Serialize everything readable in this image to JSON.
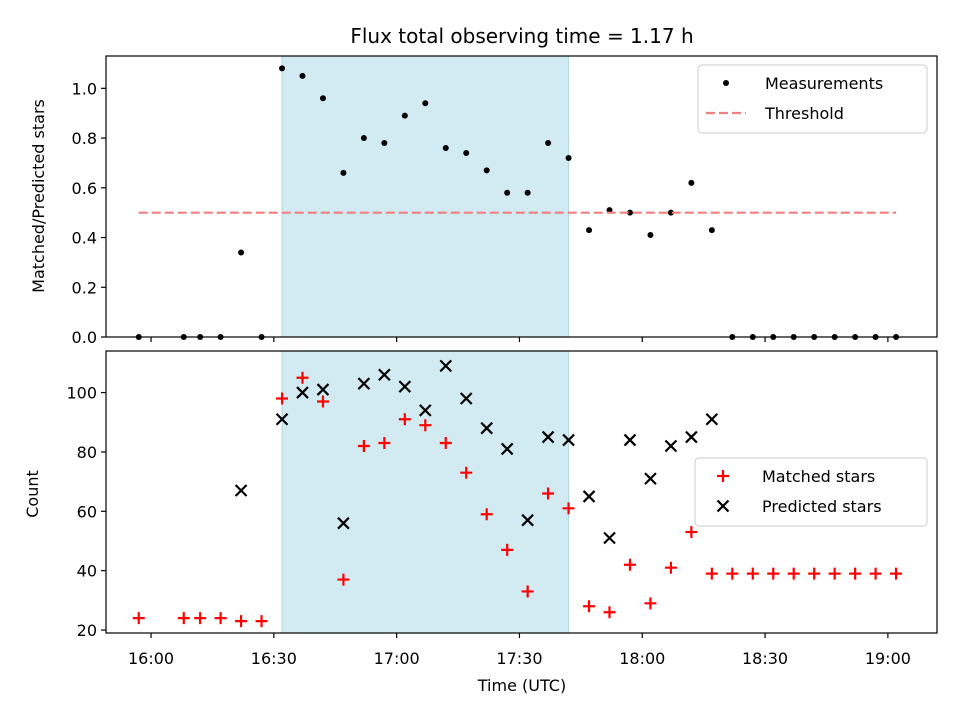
{
  "title": "Flux total observing time = 1.17 h",
  "xlabel": "Time (UTC)",
  "colors": {
    "measurements": "#000000",
    "threshold": "#f08080",
    "matched": "#ff0000",
    "predicted": "#000000",
    "highlight": "#add8e6"
  },
  "chart_data": [
    {
      "type": "scatter",
      "ylabel": "Matched/Predicted stars",
      "ylim": [
        0,
        1.13
      ],
      "yticks": [
        0.0,
        0.2,
        0.4,
        0.6,
        0.8,
        1.0
      ],
      "ytick_labels": [
        "0.0",
        "0.2",
        "0.4",
        "0.6",
        "0.8",
        "1.0"
      ],
      "xlim": [
        "15:49",
        "19:12"
      ],
      "highlight_span": [
        "16:32",
        "17:42"
      ],
      "legend_position": "upper right",
      "series": [
        {
          "name": "Measurements",
          "marker": "dot",
          "x": [
            "15:57",
            "16:08",
            "16:12",
            "16:17",
            "16:22",
            "16:27",
            "16:32",
            "16:37",
            "16:42",
            "16:47",
            "16:52",
            "16:57",
            "17:02",
            "17:07",
            "17:12",
            "17:17",
            "17:22",
            "17:27",
            "17:32",
            "17:37",
            "17:42",
            "17:47",
            "17:52",
            "17:57",
            "18:02",
            "18:07",
            "18:12",
            "18:17",
            "18:22",
            "18:27",
            "18:32",
            "18:37",
            "18:42",
            "18:47",
            "18:52",
            "18:57",
            "19:02"
          ],
          "y": [
            0.0,
            0.0,
            0.0,
            0.0,
            0.34,
            0.0,
            1.08,
            1.05,
            0.96,
            0.66,
            0.8,
            0.78,
            0.89,
            0.94,
            0.76,
            0.74,
            0.67,
            0.58,
            0.58,
            0.78,
            0.72,
            0.43,
            0.51,
            0.5,
            0.41,
            0.5,
            0.62,
            0.43,
            0.0,
            0.0,
            0.0,
            0.0,
            0.0,
            0.0,
            0.0,
            0.0,
            0.0
          ]
        },
        {
          "name": "Threshold",
          "marker": "dashed-line",
          "x": [
            "15:57",
            "19:02"
          ],
          "y": [
            0.5,
            0.5
          ]
        }
      ]
    },
    {
      "type": "scatter",
      "ylabel": "Count",
      "ylim": [
        19,
        114
      ],
      "yticks": [
        20,
        40,
        60,
        80,
        100
      ],
      "ytick_labels": [
        "20",
        "40",
        "60",
        "80",
        "100"
      ],
      "xlim": [
        "15:49",
        "19:12"
      ],
      "highlight_span": [
        "16:32",
        "17:42"
      ],
      "legend_position": "center right",
      "series": [
        {
          "name": "Matched stars",
          "marker": "plus",
          "x": [
            "15:57",
            "16:08",
            "16:12",
            "16:17",
            "16:22",
            "16:27",
            "16:32",
            "16:37",
            "16:42",
            "16:47",
            "16:52",
            "16:57",
            "17:02",
            "17:07",
            "17:12",
            "17:17",
            "17:22",
            "17:27",
            "17:32",
            "17:37",
            "17:42",
            "17:47",
            "17:52",
            "17:57",
            "18:02",
            "18:07",
            "18:12",
            "18:17",
            "18:22",
            "18:27",
            "18:32",
            "18:37",
            "18:42",
            "18:47",
            "18:52",
            "18:57",
            "19:02"
          ],
          "y": [
            24,
            24,
            24,
            24,
            23,
            23,
            98,
            105,
            97,
            37,
            82,
            83,
            91,
            89,
            83,
            73,
            59,
            47,
            33,
            66,
            61,
            28,
            26,
            42,
            29,
            41,
            53,
            39,
            39,
            39,
            39,
            39,
            39,
            39,
            39,
            39,
            39
          ]
        },
        {
          "name": "Predicted stars",
          "marker": "x",
          "x": [
            "16:22",
            "16:32",
            "16:37",
            "16:42",
            "16:47",
            "16:52",
            "16:57",
            "17:02",
            "17:07",
            "17:12",
            "17:17",
            "17:22",
            "17:27",
            "17:32",
            "17:37",
            "17:42",
            "17:47",
            "17:52",
            "17:57",
            "18:02",
            "18:07",
            "18:12",
            "18:17"
          ],
          "y": [
            67,
            91,
            100,
            101,
            56,
            103,
            106,
            102,
            94,
            109,
            98,
            88,
            81,
            57,
            85,
            84,
            65,
            51,
            84,
            71,
            82,
            85,
            91
          ]
        }
      ]
    }
  ],
  "xticks": [
    "16:00",
    "16:30",
    "17:00",
    "17:30",
    "18:00",
    "18:30",
    "19:00"
  ]
}
